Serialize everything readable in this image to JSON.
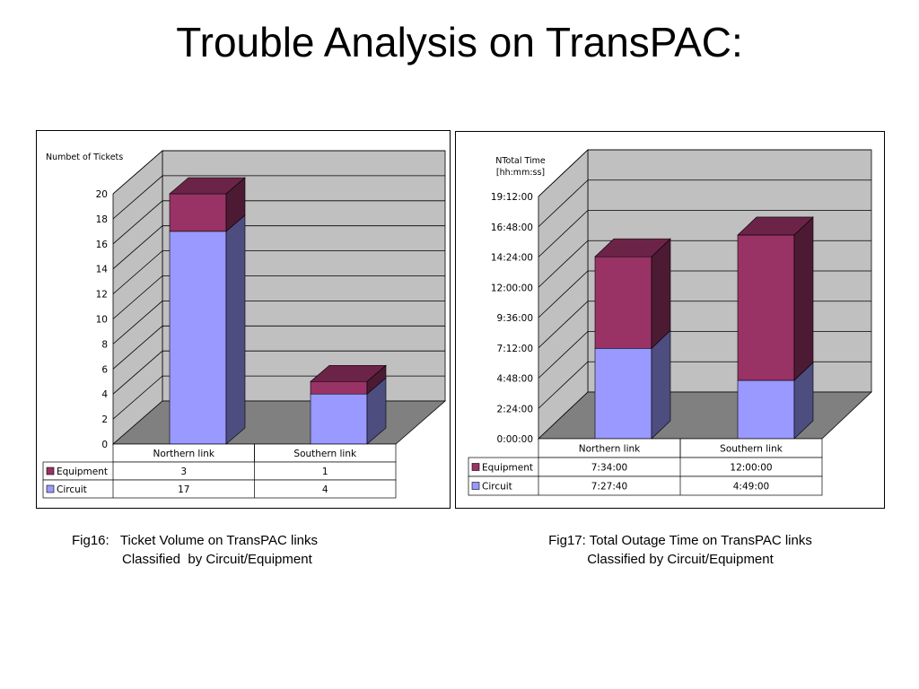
{
  "slide": {
    "title": "Trouble Analysis on TransPAC:"
  },
  "colors": {
    "equipment": "#993366",
    "circuit": "#9999ff",
    "wall": "#c0c0c0",
    "floor": "#808080",
    "grid": "#000000"
  },
  "chart_data": [
    {
      "type": "bar",
      "stacked": true,
      "three_d": true,
      "ylabel": "Numbet of  Tickets",
      "ylim": [
        0,
        20
      ],
      "yticks": [
        "0",
        "2",
        "4",
        "6",
        "8",
        "10",
        "12",
        "14",
        "16",
        "18",
        "20"
      ],
      "categories": [
        "Northern link",
        "Southern link"
      ],
      "series": [
        {
          "name": "Circuit",
          "color": "#9999ff",
          "values": [
            17,
            4
          ],
          "labels": [
            "17",
            "4"
          ]
        },
        {
          "name": "Equipment",
          "color": "#993366",
          "values": [
            3,
            1
          ],
          "labels": [
            "3",
            "1"
          ]
        }
      ],
      "table": true,
      "grid": true
    },
    {
      "type": "bar",
      "stacked": true,
      "three_d": true,
      "ylabel": "NTotal Time\n[hh:mm:ss]",
      "ylim": [
        0,
        72000
      ],
      "yticks": [
        "0:00:00",
        "2:24:00",
        "4:48:00",
        "7:12:00",
        "9:36:00",
        "12:00:00",
        "14:24:00",
        "16:48:00",
        "19:12:00"
      ],
      "categories": [
        "Northern link",
        "Southern link"
      ],
      "series": [
        {
          "name": "Circuit",
          "color": "#9999ff",
          "values": [
            26860,
            17340
          ],
          "labels": [
            "7:27:40",
            "4:49:00"
          ]
        },
        {
          "name": "Equipment",
          "color": "#993366",
          "values": [
            27240,
            43200
          ],
          "labels": [
            "7:34:00",
            "12:00:00"
          ]
        }
      ],
      "table": true,
      "grid": true
    }
  ],
  "captions": {
    "fig16_line1": "Fig16:   Ticket Volume on TransPAC links",
    "fig16_line2": "Classified  by Circuit/Equipment",
    "fig17_line1": "Fig17: Total Outage Time on TransPAC links",
    "fig17_line2": "Classified by Circuit/Equipment"
  }
}
